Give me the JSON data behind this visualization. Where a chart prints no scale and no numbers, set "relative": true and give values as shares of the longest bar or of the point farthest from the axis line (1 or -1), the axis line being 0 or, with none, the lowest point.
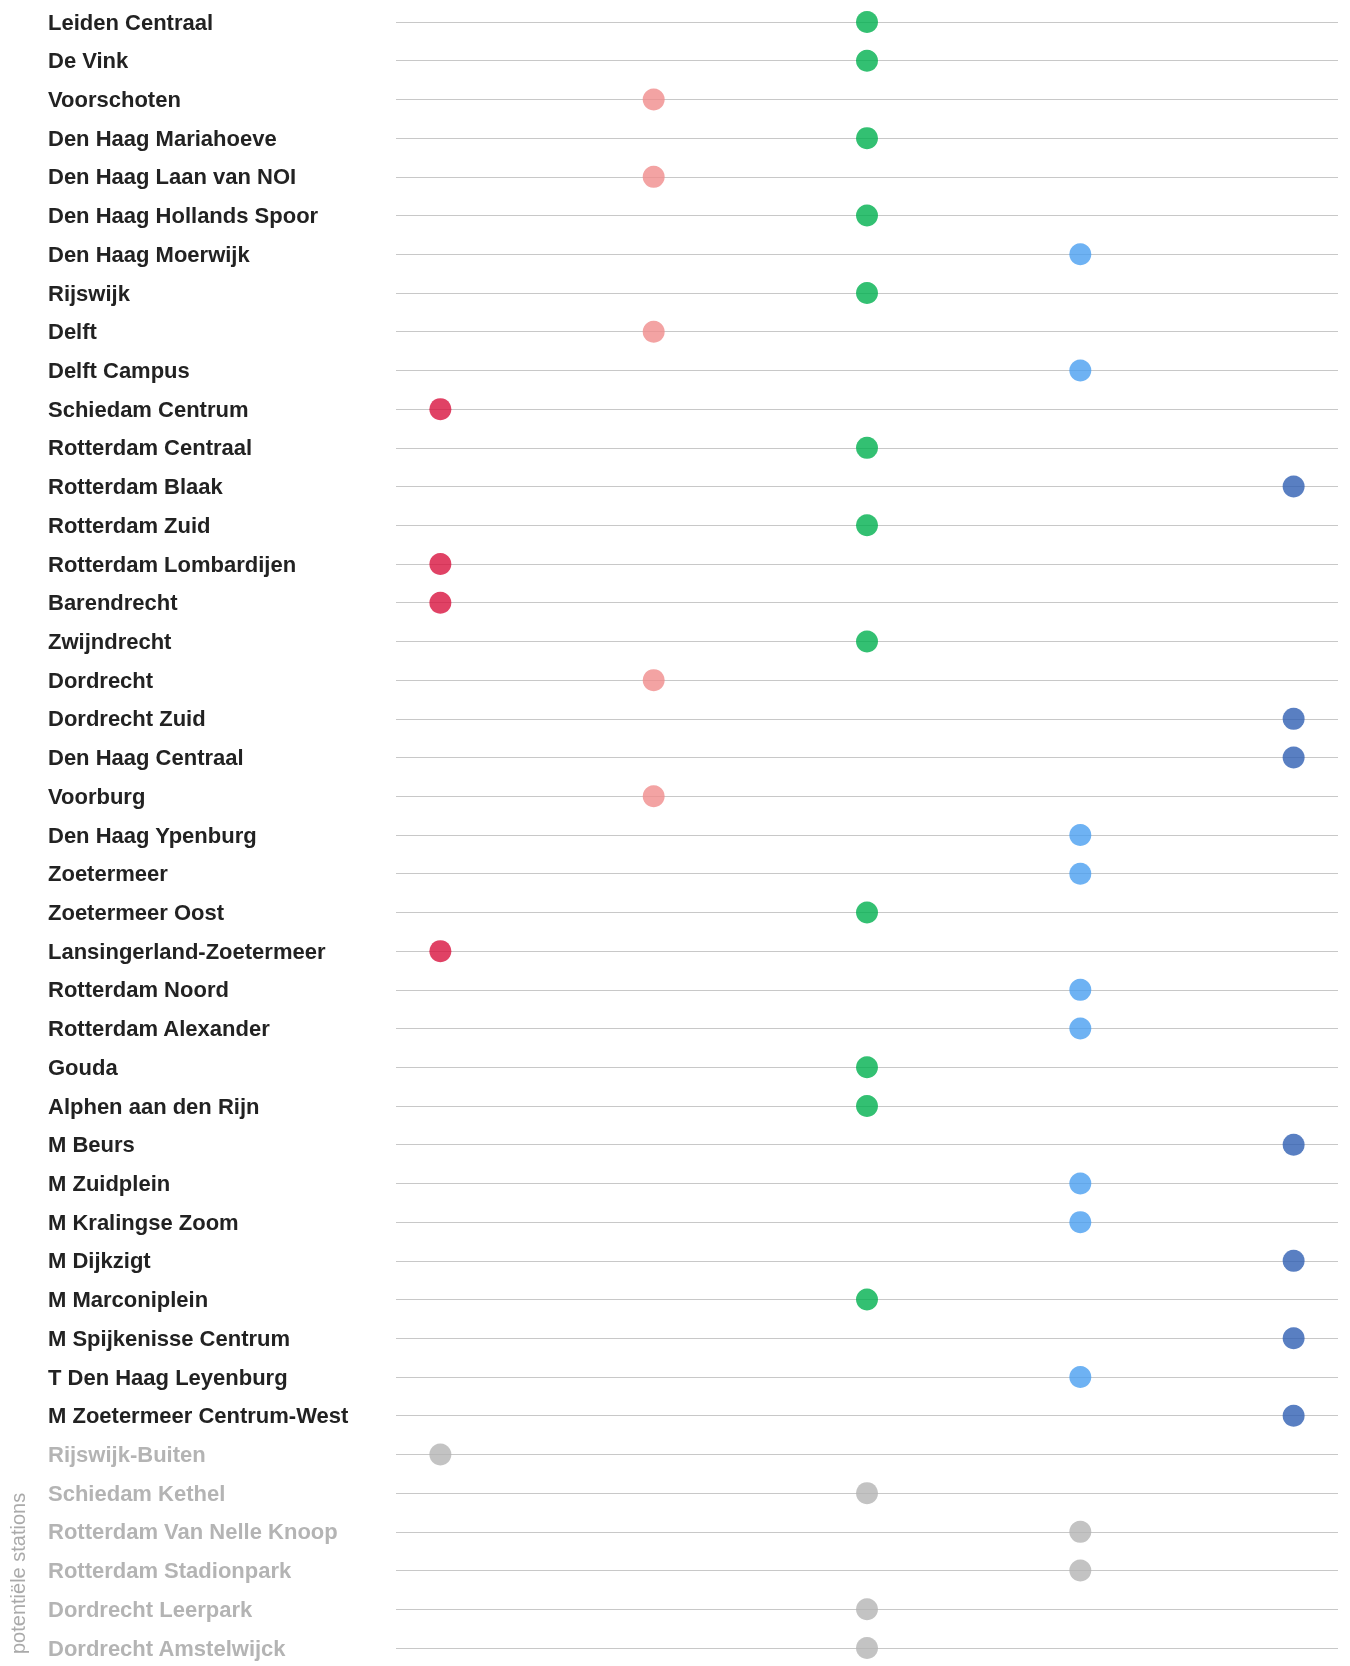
{
  "chart_data": {
    "type": "scatter",
    "orientation": "horizontal",
    "relative": true,
    "grid": "y",
    "marker": "circle",
    "annotations": [
      "potentiële stations"
    ],
    "categories": [
      "Leiden Centraal",
      "De Vink",
      "Voorschoten",
      "Den Haag Mariahoeve",
      "Den Haag Laan van NOI",
      "Den Haag Hollands Spoor",
      "Den Haag Moerwijk",
      "Rijswijk",
      "Delft",
      "Delft Campus",
      "Schiedam Centrum",
      "Rotterdam Centraal",
      "Rotterdam Blaak",
      "Rotterdam Zuid",
      "Rotterdam Lombardijen",
      "Barendrecht",
      "Zwijndrecht",
      "Dordrecht",
      "Dordrecht Zuid",
      "Den Haag Centraal",
      "Voorburg",
      "Den Haag Ypenburg",
      "Zoetermeer",
      "Zoetermeer Oost",
      "Lansingerland-Zoetermeer",
      "Rotterdam Noord",
      "Rotterdam Alexander",
      "Gouda",
      "Alphen aan den Rijn",
      "M Beurs",
      "M Zuidplein",
      "M Kralingse Zoom",
      "M Dijkzigt",
      "M Marconiplein",
      "M Spijkenisse Centrum",
      "T Den Haag Leyenburg",
      "M Zoetermeer Centrum-West",
      "Rijswijk-Buiten",
      "Schiedam Kethel",
      "Rotterdam Van Nelle Knoop",
      "Rotterdam Stadionpark",
      "Dordrecht Leerpark",
      "Dordrecht Amstelwijck"
    ],
    "series": [
      {
        "color": "#00b04f",
        "values": [
          0.5,
          0.5,
          0.25,
          0.5,
          0.25,
          0.5,
          0.75,
          0.5,
          0.25,
          0.75,
          0,
          0.5,
          1,
          0.5,
          0,
          0,
          0.5,
          0.25,
          1,
          1,
          0.25,
          0.75,
          0.75,
          0.5,
          0,
          0.75,
          0.75,
          0.5,
          0.5,
          1,
          0.75,
          0.75,
          1,
          0.5,
          1,
          0.75,
          1,
          null,
          null,
          null,
          null,
          null,
          null
        ],
        "colors": [
          "#00b04f",
          "#00b04f",
          "#f08c8c",
          "#00b04f",
          "#f08c8c",
          "#00b04f",
          "#4a9ff0",
          "#00b04f",
          "#f08c8c",
          "#4a9ff0",
          "#d8133f",
          "#00b04f",
          "#2f5fb3",
          "#00b04f",
          "#d8133f",
          "#d8133f",
          "#00b04f",
          "#f08c8c",
          "#2f5fb3",
          "#2f5fb3",
          "#f08c8c",
          "#4a9ff0",
          "#4a9ff0",
          "#00b04f",
          "#d8133f",
          "#4a9ff0",
          "#4a9ff0",
          "#00b04f",
          "#00b04f",
          "#2f5fb3",
          "#4a9ff0",
          "#4a9ff0",
          "#2f5fb3",
          "#00b04f",
          "#2f5fb3",
          "#4a9ff0",
          "#2f5fb3",
          null,
          null,
          null,
          null,
          null,
          null
        ]
      },
      {
        "color": "#b4b4b4",
        "values": [
          null,
          null,
          null,
          null,
          null,
          null,
          null,
          null,
          null,
          null,
          null,
          null,
          null,
          null,
          null,
          null,
          null,
          null,
          null,
          null,
          null,
          null,
          null,
          null,
          null,
          null,
          null,
          null,
          null,
          null,
          null,
          null,
          null,
          null,
          null,
          null,
          null,
          0,
          0.5,
          0.75,
          0.75,
          0.5,
          0.5
        ]
      }
    ]
  }
}
